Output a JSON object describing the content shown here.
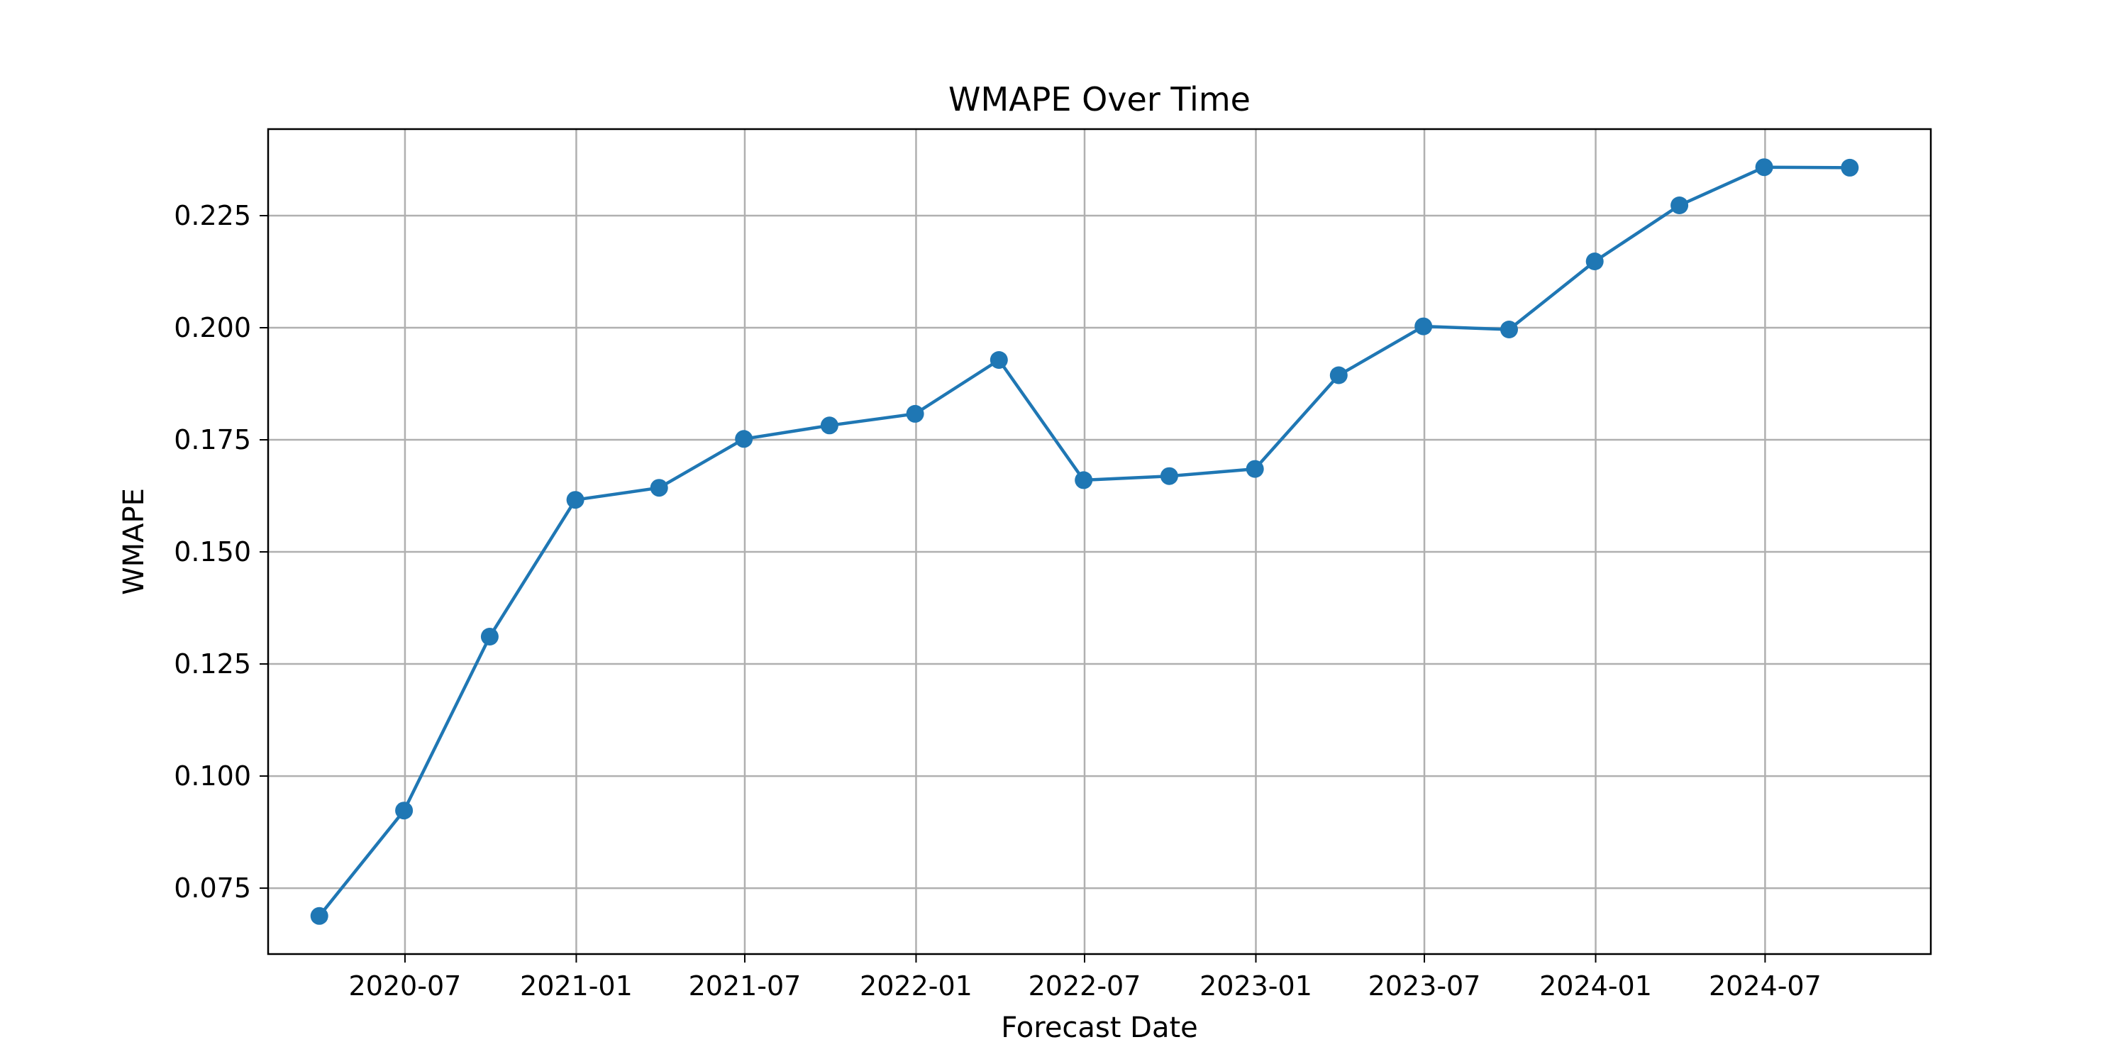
{
  "chart_data": {
    "type": "line",
    "title": "WMAPE Over Time",
    "xlabel": "Forecast Date",
    "ylabel": "WMAPE",
    "x_axis_type": "date",
    "xlim": [
      "2020-02-05",
      "2024-12-26"
    ],
    "ylim": [
      0.0603,
      0.2443
    ],
    "grid": true,
    "legend": "none",
    "marker": "circle",
    "series_color": "#1f77b4",
    "x_ticks": [
      "2020-07",
      "2021-01",
      "2021-07",
      "2022-01",
      "2022-07",
      "2023-01",
      "2023-07",
      "2024-01",
      "2024-07"
    ],
    "y_ticks": [
      "0.075",
      "0.100",
      "0.125",
      "0.150",
      "0.175",
      "0.200",
      "0.225"
    ],
    "series": [
      {
        "x": [
          "2020-03-31",
          "2020-06-30",
          "2020-09-30",
          "2020-12-31",
          "2021-03-31",
          "2021-06-30",
          "2021-09-30",
          "2021-12-31",
          "2022-03-31",
          "2022-06-30",
          "2022-09-30",
          "2022-12-31",
          "2023-03-31",
          "2023-06-30",
          "2023-09-30",
          "2023-12-31",
          "2024-03-31",
          "2024-06-30",
          "2024-09-30"
        ],
        "y": [
          0.0688,
          0.0923,
          0.1311,
          0.1616,
          0.1643,
          0.1752,
          0.1782,
          0.1808,
          0.1928,
          0.166,
          0.1669,
          0.1685,
          0.1894,
          0.2003,
          0.1996,
          0.2148,
          0.2273,
          0.2358,
          0.2357
        ]
      }
    ]
  }
}
